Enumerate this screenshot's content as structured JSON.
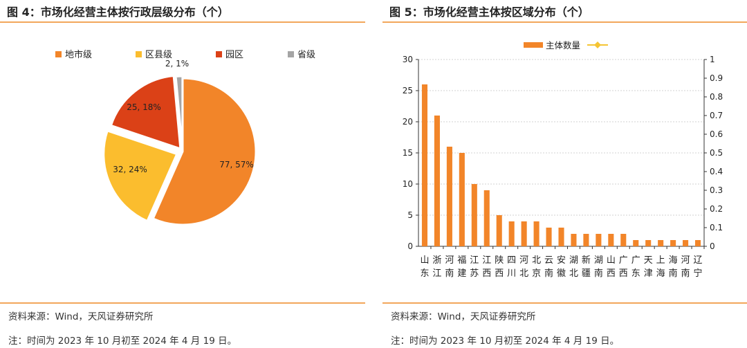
{
  "left": {
    "title": "图 4：市场化经营主体按行政层级分布（个）",
    "source": "资料来源：Wind，天风证券研究所",
    "note": "注：时间为 2023 年 10 月初至 2024 年 4 月 19 日。",
    "legend": [
      "地市级",
      "区县级",
      "园区",
      "省级"
    ],
    "colors": [
      "#f28529",
      "#fbbd2e",
      "#db4117",
      "#a5a5a5"
    ]
  },
  "right": {
    "title": "图 5：市场化经营主体按区域分布（个）",
    "source": "资料来源：Wind，天风证券研究所",
    "note": "注：时间为 2023 年 10 月初至 2024 年 4 月 19 日。",
    "legend_series": "主体数量",
    "legend_marker_color": "#f5c433",
    "bar_color": "#f28529"
  },
  "chart_data": [
    {
      "type": "pie",
      "categories": [
        "地市级",
        "区县级",
        "园区",
        "省级"
      ],
      "values": [
        77,
        32,
        25,
        2
      ],
      "labels": [
        "77, 57%",
        "32, 24%",
        "25, 18%",
        "2, 1%"
      ],
      "legend_position": "top"
    },
    {
      "type": "bar",
      "categories": [
        "山东",
        "浙江",
        "河南",
        "福建",
        "江苏",
        "江西",
        "陕西",
        "四川",
        "河北",
        "北京",
        "云南",
        "安徽",
        "湖北",
        "新疆",
        "湖南",
        "山西",
        "广西",
        "广东",
        "天津",
        "上海",
        "海南",
        "河南",
        "辽宁"
      ],
      "series": [
        {
          "name": "主体数量",
          "values": [
            26,
            21,
            16,
            15,
            10,
            9,
            5,
            4,
            4,
            4,
            3,
            3,
            2,
            2,
            2,
            2,
            2,
            1,
            1,
            1,
            1,
            1,
            1
          ]
        }
      ],
      "ylim": [
        0,
        30
      ],
      "yticks": [
        "0",
        "5",
        "10",
        "15",
        "20",
        "25",
        "30"
      ],
      "y2lim": [
        0,
        1
      ],
      "y2ticks": [
        "0",
        "0.1",
        "0.2",
        "0.3",
        "0.4",
        "0.5",
        "0.6",
        "0.7",
        "0.8",
        "0.9",
        "1"
      ],
      "grid": true,
      "legend_position": "top"
    }
  ]
}
